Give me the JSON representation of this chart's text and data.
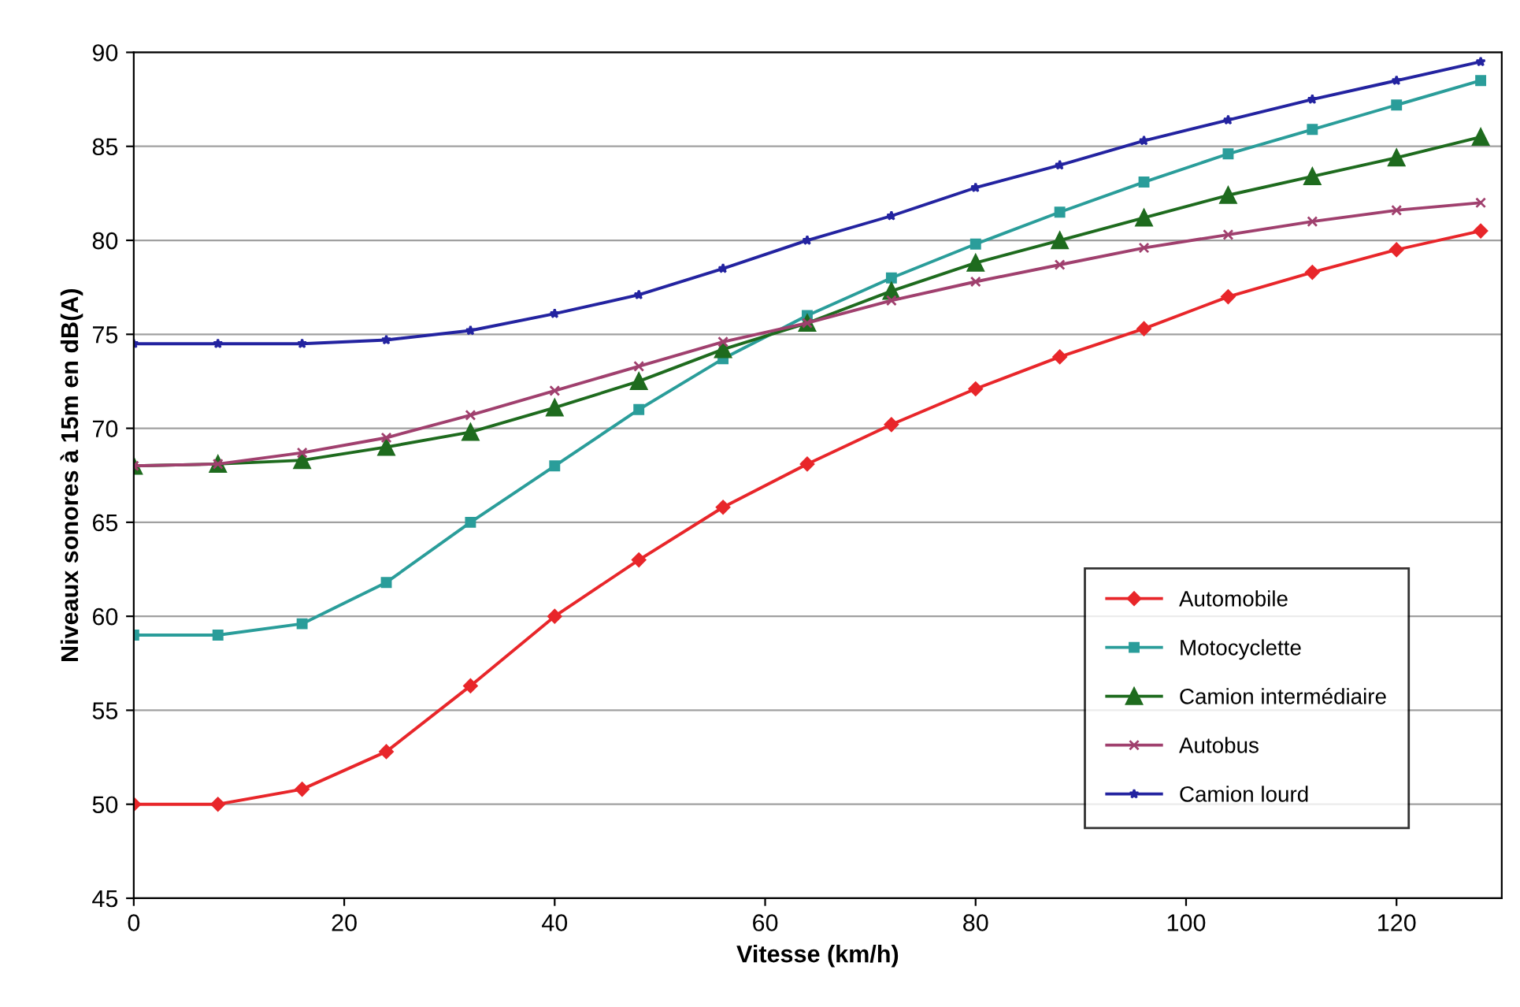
{
  "chart_data": {
    "type": "line",
    "xlabel": "Vitesse (km/h)",
    "ylabel": "Niveaux sonores à 15m en dB(A)",
    "x": [
      0,
      8,
      16,
      24,
      32,
      40,
      48,
      56,
      64,
      72,
      80,
      88,
      96,
      104,
      112,
      120,
      128
    ],
    "xlim": [
      0,
      130
    ],
    "xticks": [
      0,
      20,
      40,
      60,
      80,
      100,
      120
    ],
    "ylim": [
      45,
      90
    ],
    "yticks": [
      45,
      50,
      55,
      60,
      65,
      70,
      75,
      80,
      85,
      90
    ],
    "grid": "y",
    "legend": "bottom right",
    "series": [
      {
        "name": "Automobile",
        "color": "#e8262a",
        "marker": "diamond",
        "values": [
          50,
          50,
          50.8,
          52.8,
          56.3,
          60,
          63,
          65.8,
          68.1,
          70.2,
          72.1,
          73.8,
          75.3,
          77,
          78.3,
          79.5,
          80.5
        ]
      },
      {
        "name": "Motocyclette",
        "color": "#2a9d9a",
        "marker": "square",
        "values": [
          59,
          59,
          59.6,
          61.8,
          65,
          68,
          71,
          73.7,
          76,
          78,
          79.8,
          81.5,
          83.1,
          84.6,
          85.9,
          87.2,
          88.5
        ]
      },
      {
        "name": "Camion intermédiaire",
        "color": "#1e6b1e",
        "marker": "triangle",
        "values": [
          68,
          68.1,
          68.3,
          69,
          69.8,
          71.1,
          72.5,
          74.2,
          75.6,
          77.3,
          78.8,
          80,
          81.2,
          82.4,
          83.4,
          84.4,
          85.5
        ]
      },
      {
        "name": "Autobus",
        "color": "#a0406e",
        "marker": "cross",
        "values": [
          68,
          68.1,
          68.7,
          69.5,
          70.7,
          72,
          73.3,
          74.6,
          75.6,
          76.8,
          77.8,
          78.7,
          79.6,
          80.3,
          81,
          81.6,
          82
        ]
      },
      {
        "name": "Camion lourd",
        "color": "#2323a0",
        "marker": "star",
        "values": [
          74.5,
          74.5,
          74.5,
          74.7,
          75.2,
          76.1,
          77.1,
          78.5,
          80,
          81.3,
          82.8,
          84,
          85.3,
          86.4,
          87.5,
          88.5,
          89.5
        ]
      }
    ]
  }
}
